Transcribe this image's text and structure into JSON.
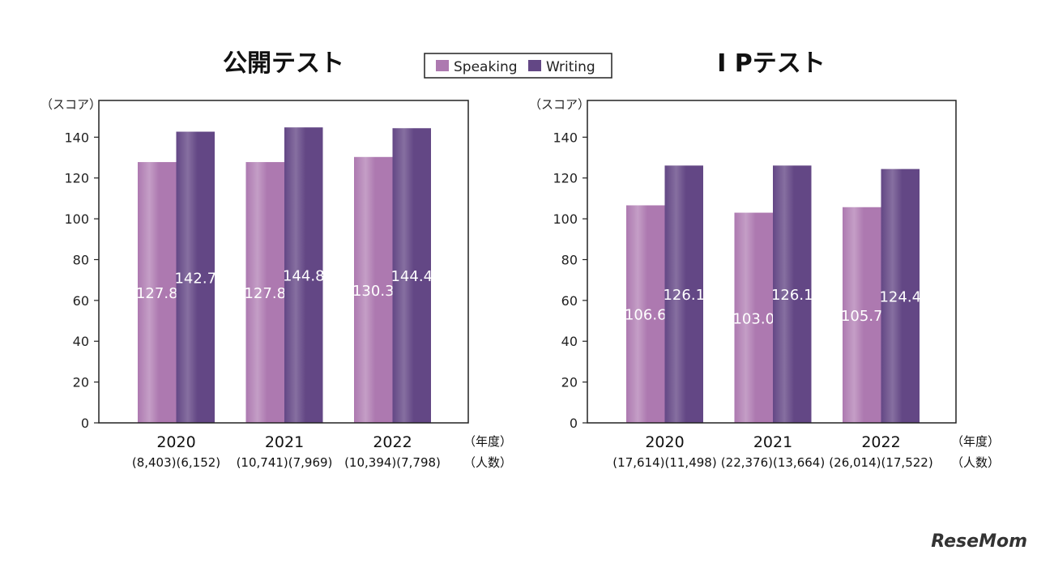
{
  "legend": {
    "items": [
      {
        "name": "Speaking",
        "color": "#ad79b0"
      },
      {
        "name": "Writing",
        "color": "#634785"
      }
    ],
    "placement": "top-center"
  },
  "logo": "ReseMom",
  "chart_data": [
    {
      "type": "bar",
      "title": "公開テスト",
      "ylabel": "（スコア）",
      "xlabel_unit": "（年度）",
      "count_unit": "（人数）",
      "ylim": [
        0,
        158
      ],
      "yticks": [
        0,
        20,
        40,
        60,
        80,
        100,
        120,
        140
      ],
      "grid": false,
      "categories": [
        "2020",
        "2021",
        "2022"
      ],
      "counts": [
        "(8,403)(6,152)",
        "(10,741)(7,969)",
        "(10,394)(7,798)"
      ],
      "series": [
        {
          "name": "Speaking",
          "values": [
            127.8,
            127.8,
            130.3
          ]
        },
        {
          "name": "Writing",
          "values": [
            142.7,
            144.8,
            144.4
          ]
        }
      ]
    },
    {
      "type": "bar",
      "title": "I Pテスト",
      "ylabel": "（スコア）",
      "xlabel_unit": "（年度）",
      "count_unit": "（人数）",
      "ylim": [
        0,
        158
      ],
      "yticks": [
        0,
        20,
        40,
        60,
        80,
        100,
        120,
        140
      ],
      "grid": false,
      "categories": [
        "2020",
        "2021",
        "2022"
      ],
      "counts": [
        "(17,614)(11,498)",
        "(22,376)(13,664)",
        "(26,014)(17,522)"
      ],
      "series": [
        {
          "name": "Speaking",
          "values": [
            106.6,
            103.0,
            105.7
          ]
        },
        {
          "name": "Writing",
          "values": [
            126.1,
            126.1,
            124.4
          ]
        }
      ]
    }
  ]
}
